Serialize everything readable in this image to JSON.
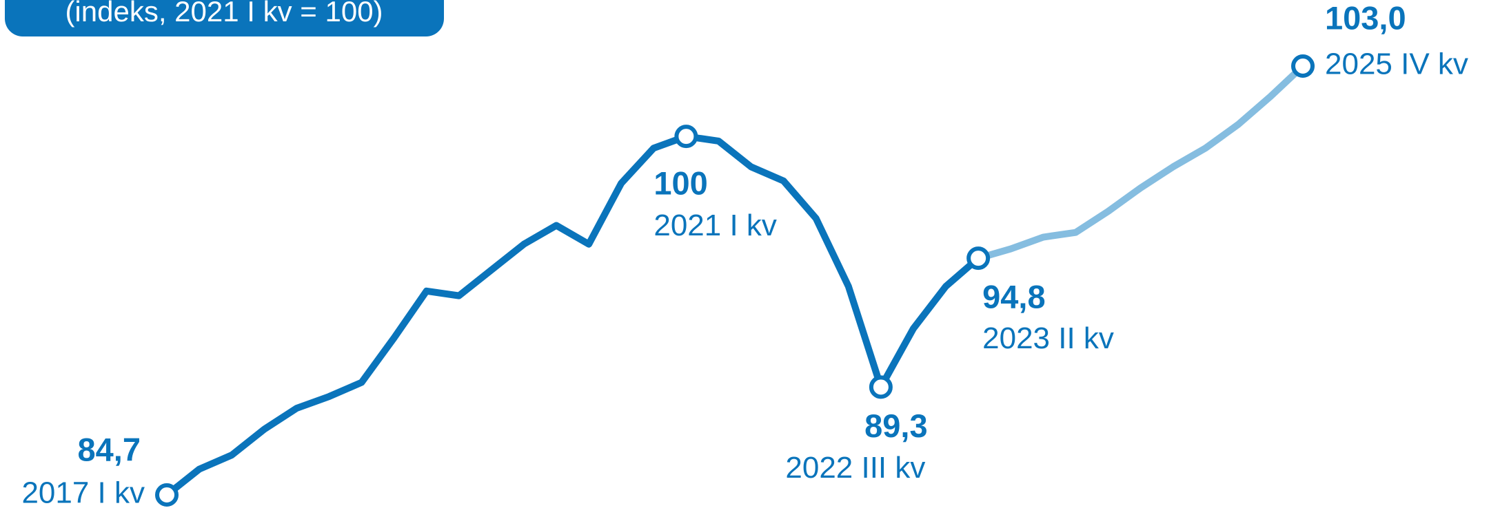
{
  "chart_data": {
    "type": "line",
    "subtitle": "(indeks, 2021 I kv = 100)",
    "categories": [
      "2017 I kv",
      null,
      null,
      null,
      null,
      null,
      null,
      null,
      null,
      null,
      null,
      null,
      null,
      null,
      null,
      null,
      "2021 I kv",
      null,
      null,
      null,
      null,
      null,
      "2022 III kv",
      null,
      null,
      "2023 II kv",
      null,
      null,
      null,
      null,
      null,
      null,
      null,
      null,
      null,
      "2025 IV kv"
    ],
    "series": [
      {
        "color": "#0a74bb",
        "values": [
          84.7,
          85.8,
          86.4,
          87.5,
          88.4,
          88.9,
          89.5,
          91.4,
          93.4,
          93.2,
          94.3,
          95.4,
          96.2,
          95.4,
          98.0,
          99.5,
          100,
          99.8,
          98.7,
          98.1,
          96.5,
          93.6,
          89.3,
          91.8,
          93.6,
          94.8,
          null,
          null,
          null,
          null,
          null,
          null,
          null,
          null,
          null,
          null
        ],
        "value_labels": [
          "84,7",
          null,
          null,
          null,
          null,
          null,
          null,
          null,
          null,
          null,
          null,
          null,
          null,
          null,
          null,
          null,
          null,
          null,
          null,
          null,
          null,
          null,
          "89,3",
          null,
          null,
          "94,8",
          null,
          null,
          null,
          null,
          null,
          null,
          null,
          null,
          null,
          null
        ]
      },
      {
        "color": "#85bde0",
        "values": [
          null,
          null,
          null,
          null,
          null,
          null,
          null,
          null,
          null,
          null,
          null,
          null,
          null,
          null,
          null,
          null,
          null,
          null,
          null,
          null,
          null,
          null,
          null,
          null,
          null,
          94.8,
          95.2,
          95.7,
          95.9,
          96.8,
          97.8,
          98.7,
          99.5,
          100.5,
          101.7,
          103.0
        ],
        "value_labels": [
          null,
          null,
          null,
          null,
          null,
          null,
          null,
          null,
          null,
          null,
          null,
          null,
          null,
          null,
          null,
          null,
          null,
          null,
          null,
          null,
          null,
          null,
          null,
          null,
          null,
          null,
          null,
          null,
          null,
          null,
          null,
          null,
          null,
          null,
          null,
          "103,0"
        ]
      }
    ]
  }
}
